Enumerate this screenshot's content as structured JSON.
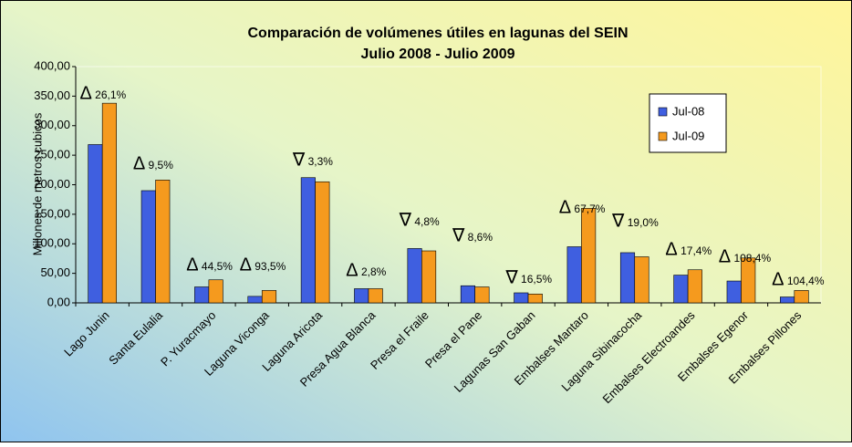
{
  "chart_data": {
    "type": "bar",
    "title": "Comparación de volúmenes útiles en lagunas del SEIN",
    "subtitle": "Julio 2008 -  Julio 2009",
    "y_label": "Millones de metros cubicos",
    "categories": [
      "Lago Junin",
      "Santa Eulalia",
      "P. Yuracmayo",
      "Laguna Viconga",
      "Laguna Aricota",
      "Presa Agua Blanca",
      "Presa el Fraile",
      "Presa el Pane",
      "Lagunas San Gaban",
      "Embalses Mantaro",
      "Laguna Sibinacocha",
      "Embalses Electroandes",
      "Embalses Egenor",
      "Embalses Pillones"
    ],
    "series": [
      {
        "name": "Jul-08",
        "color": "#3f5fe0",
        "values": [
          268,
          190,
          27,
          11,
          212,
          24,
          92,
          29,
          17,
          95,
          85,
          47,
          37,
          10
        ]
      },
      {
        "name": "Jul-09",
        "color": "#f59a1e",
        "values": [
          338,
          208,
          39,
          21,
          205,
          24,
          88,
          27,
          15,
          160,
          78,
          56,
          76,
          21
        ]
      }
    ],
    "annotations": [
      {
        "symbol": "Δ",
        "text": "26,1%"
      },
      {
        "symbol": "Δ",
        "text": "9,5%"
      },
      {
        "symbol": "Δ",
        "text": "44,5%"
      },
      {
        "symbol": "Δ",
        "text": "93,5%"
      },
      {
        "symbol": "∇",
        "text": "3,3%"
      },
      {
        "symbol": "Δ",
        "text": "2,8%"
      },
      {
        "symbol": "∇",
        "text": "4,8%"
      },
      {
        "symbol": "∇",
        "text": "8,6%"
      },
      {
        "symbol": "∇",
        "text": "16,5%"
      },
      {
        "symbol": "Δ",
        "text": "67,7%"
      },
      {
        "symbol": "∇",
        "text": "19,0%"
      },
      {
        "symbol": "Δ",
        "text": "17,4%"
      },
      {
        "symbol": "Δ",
        "text": "108,4%"
      },
      {
        "symbol": "Δ",
        "text": "104,4%"
      }
    ],
    "ylim": [
      0,
      400
    ],
    "yticks": [
      {
        "value": 0,
        "label": "0,00"
      },
      {
        "value": 50,
        "label": "50,00"
      },
      {
        "value": 100,
        "label": "100,00"
      },
      {
        "value": 150,
        "label": "150,00"
      },
      {
        "value": 200,
        "label": "200,00"
      },
      {
        "value": 250,
        "label": "250,00"
      },
      {
        "value": 300,
        "label": "300,00"
      },
      {
        "value": 350,
        "label": "350,00"
      },
      {
        "value": 400,
        "label": "400,00"
      }
    ],
    "grid": false,
    "legend": "upper right"
  }
}
